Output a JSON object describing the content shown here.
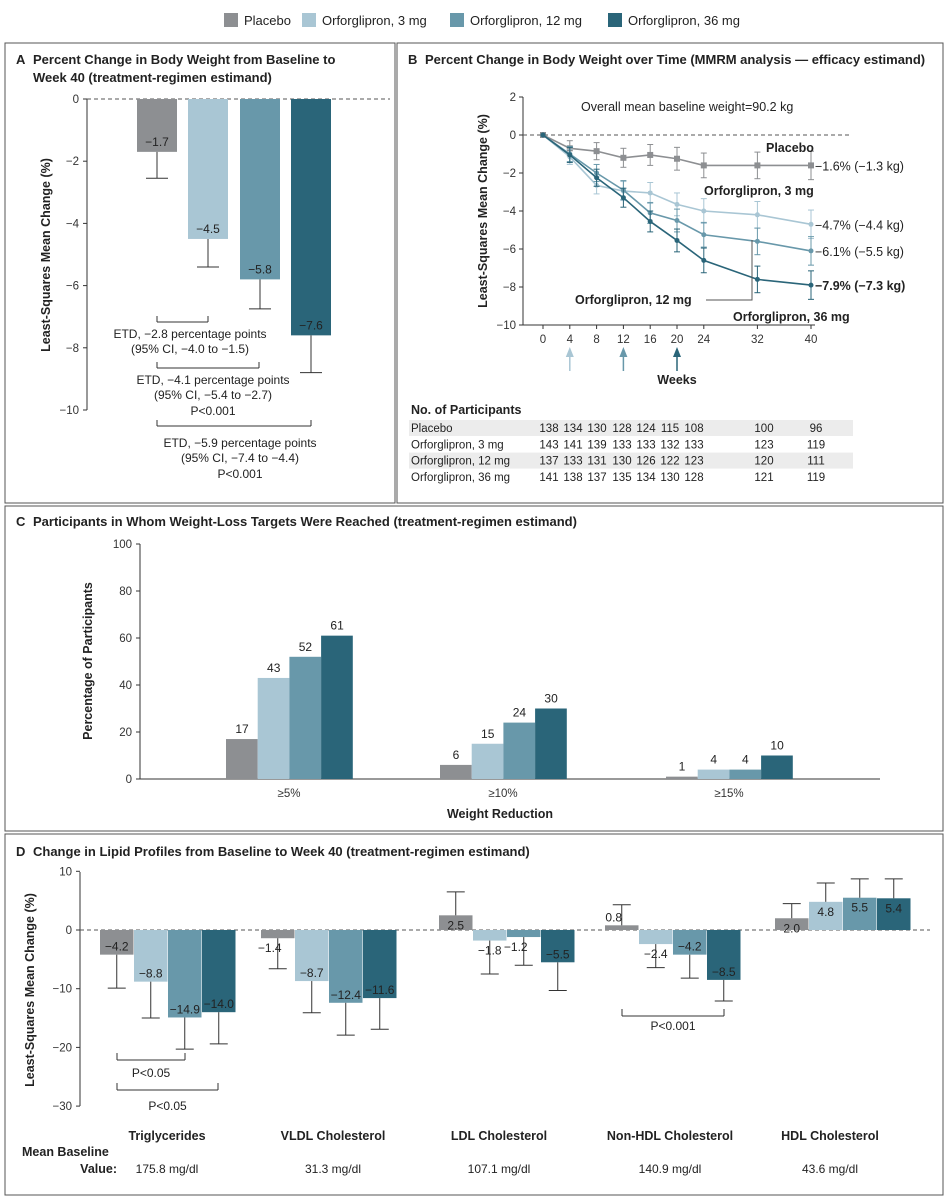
{
  "legend": [
    {
      "name": "Placebo",
      "color": "#8d8f92"
    },
    {
      "name": "Orforglipron, 3 mg",
      "color": "#a9c6d4"
    },
    {
      "name": "Orforglipron, 12 mg",
      "color": "#6898aa"
    },
    {
      "name": "Orforglipron, 36 mg",
      "color": "#2a6579"
    }
  ],
  "chart_data": [
    {
      "panel": "A",
      "type": "bar",
      "title_lines": [
        "Percent Change in Body Weight from Baseline to",
        "Week 40 (treatment-regimen estimand)"
      ],
      "ylabel": "Least-Squares Mean Change (%)",
      "ylim": [
        -10,
        0
      ],
      "yticks": [
        "0",
        "−2",
        "−4",
        "−6",
        "−8",
        "−10"
      ],
      "categories": [
        "Placebo",
        "Orforglipron, 3 mg",
        "Orforglipron, 12 mg",
        "Orforglipron, 36 mg"
      ],
      "values": [
        -1.7,
        -4.5,
        -5.8,
        -7.6
      ],
      "value_labels": [
        "−1.7",
        "−4.5",
        "−5.8",
        "−7.6"
      ],
      "error_lower": [
        -2.55,
        -5.4,
        -6.75,
        -8.8
      ],
      "annotations": [
        {
          "lines": [
            "ETD, −2.8 percentage points",
            "(95% CI, −4.0 to −1.5)"
          ]
        },
        {
          "lines": [
            "ETD, −4.1 percentage points",
            "(95% CI, −5.4 to −2.7)",
            "P<0.001"
          ]
        },
        {
          "lines": [
            "ETD, −5.9 percentage points",
            "(95% CI, −7.4 to −4.4)",
            "P<0.001"
          ]
        }
      ]
    },
    {
      "panel": "B",
      "type": "line",
      "title": "Percent Change in Body Weight over Time (MMRM analysis — efficacy estimand)",
      "ylabel": "Least-Squares Mean Change (%)",
      "xlabel": "Weeks",
      "note": "Overall mean baseline weight=90.2 kg",
      "ylim": [
        -10,
        2
      ],
      "yticks": [
        "2",
        "0",
        "−2",
        "−4",
        "−6",
        "−8",
        "−10"
      ],
      "x": [
        0,
        4,
        8,
        12,
        16,
        20,
        24,
        32,
        40
      ],
      "series": [
        {
          "name": "Placebo",
          "end_label": "−1.6% (−1.3 kg)",
          "values": [
            0,
            -0.7,
            -0.85,
            -1.2,
            -1.05,
            -1.25,
            -1.6,
            -1.6,
            -1.6
          ]
        },
        {
          "name": "Orforglipron, 3 mg",
          "end_label": "−4.7% (−4.4 kg)",
          "values": [
            0,
            -1.15,
            -2.65,
            -2.95,
            -3.05,
            -3.65,
            -4.0,
            -4.2,
            -4.7
          ]
        },
        {
          "name": "Orforglipron, 12 mg",
          "end_label": "−6.1% (−5.5 kg)",
          "values": [
            0,
            -1.0,
            -2.0,
            -2.9,
            -4.1,
            -4.5,
            -5.25,
            -5.6,
            -6.1
          ]
        },
        {
          "name": "Orforglipron, 36 mg",
          "end_label": "−7.9% (−7.3 kg)",
          "values": [
            0,
            -1.05,
            -2.25,
            -3.3,
            -4.55,
            -5.55,
            -6.6,
            -7.6,
            -7.9
          ]
        }
      ],
      "dose_escalation_arrows_weeks": [
        4,
        12,
        20
      ],
      "participants": {
        "title": "No. of Participants",
        "rows": [
          {
            "name": "Placebo",
            "values": [
              "138",
              "134",
              "130",
              "128",
              "124",
              "115",
              "108",
              "100",
              "96"
            ]
          },
          {
            "name": "Orforglipron, 3 mg",
            "values": [
              "143",
              "141",
              "139",
              "133",
              "133",
              "132",
              "133",
              "123",
              "119"
            ]
          },
          {
            "name": "Orforglipron, 12 mg",
            "values": [
              "137",
              "133",
              "131",
              "130",
              "126",
              "122",
              "123",
              "120",
              "111"
            ]
          },
          {
            "name": "Orforglipron, 36 mg",
            "values": [
              "141",
              "138",
              "137",
              "135",
              "134",
              "130",
              "128",
              "121",
              "119"
            ]
          }
        ]
      }
    },
    {
      "panel": "C",
      "type": "bar",
      "title": "Participants in Whom Weight-Loss Targets Were Reached (treatment-regimen estimand)",
      "ylabel": "Percentage of Participants",
      "xlabel": "Weight Reduction",
      "ylim": [
        0,
        100
      ],
      "yticks": [
        "0",
        "20",
        "40",
        "60",
        "80",
        "100"
      ],
      "categories": [
        "≥5%",
        "≥10%",
        "≥15%"
      ],
      "series": [
        {
          "name": "Placebo",
          "values": [
            17,
            6,
            1
          ]
        },
        {
          "name": "Orforglipron, 3 mg",
          "values": [
            43,
            15,
            4
          ]
        },
        {
          "name": "Orforglipron, 12 mg",
          "values": [
            52,
            24,
            4
          ]
        },
        {
          "name": "Orforglipron, 36 mg",
          "values": [
            61,
            30,
            10
          ]
        }
      ]
    },
    {
      "panel": "D",
      "type": "bar",
      "title": "Change in Lipid Profiles from Baseline to Week 40 (treatment-regimen estimand)",
      "ylabel": "Least-Squares Mean Change (%)",
      "ylim": [
        -30,
        10
      ],
      "yticks": [
        "10",
        "0",
        "−10",
        "−20",
        "−30"
      ],
      "categories": [
        "Triglycerides",
        "VLDL Cholesterol",
        "LDL Cholesterol",
        "Non-HDL Cholesterol",
        "HDL Cholesterol"
      ],
      "series": [
        {
          "name": "Placebo",
          "values": [
            -4.2,
            -1.4,
            2.5,
            0.8,
            2.0
          ],
          "labels": [
            "−4.2",
            "−1.4",
            "2.5",
            "0.8",
            "2.0"
          ],
          "error_end": [
            -9.9,
            -6.6,
            6.5,
            4.3,
            4.5
          ]
        },
        {
          "name": "Orforglipron, 3 mg",
          "values": [
            -8.8,
            -8.7,
            -1.8,
            -2.4,
            4.8
          ],
          "labels": [
            "−8.8",
            "−8.7",
            "−1.8",
            "−2.4",
            "4.8"
          ],
          "error_end": [
            -15.0,
            -14.1,
            -7.5,
            -6.4,
            8.0
          ]
        },
        {
          "name": "Orforglipron, 12 mg",
          "values": [
            -14.9,
            -12.4,
            -1.2,
            -4.2,
            5.5
          ],
          "labels": [
            "−14.9",
            "−12.4",
            "−1.2",
            "−4.2",
            "5.5"
          ],
          "error_end": [
            -20.3,
            -17.9,
            -6.0,
            -8.2,
            8.7
          ]
        },
        {
          "name": "Orforglipron, 36 mg",
          "values": [
            -14.0,
            -11.6,
            -5.5,
            -8.5,
            5.4
          ],
          "labels": [
            "−14.0",
            "−11.6",
            "−5.5",
            "−8.5",
            "5.4"
          ],
          "error_end": [
            -19.4,
            -16.9,
            -10.3,
            -12.1,
            8.7
          ]
        }
      ],
      "annotations": [
        "P<0.05",
        "P<0.05",
        "P<0.001"
      ],
      "baseline_label_lines": [
        "Mean Baseline",
        "Value:"
      ],
      "baseline_values": [
        "175.8 mg/dl",
        "31.3 mg/dl",
        "107.1 mg/dl",
        "140.9 mg/dl",
        "43.6 mg/dl"
      ]
    }
  ],
  "panel_letters": [
    "A",
    "B",
    "C",
    "D"
  ]
}
